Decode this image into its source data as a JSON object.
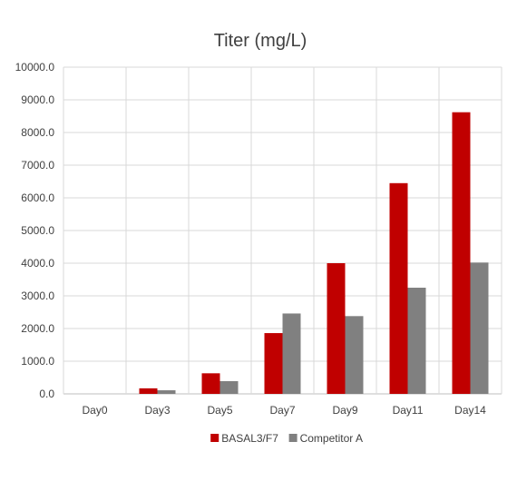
{
  "chart_data": {
    "type": "bar",
    "title": "Titer (mg/L)",
    "categories": [
      "Day0",
      "Day3",
      "Day5",
      "Day7",
      "Day9",
      "Day11",
      "Day14"
    ],
    "series": [
      {
        "name": "BASAL3/F7",
        "color": "#C00000",
        "values": [
          0,
          170,
          630,
          1860,
          4000,
          6450,
          8620
        ]
      },
      {
        "name": "Competitor A",
        "color": "#808080",
        "values": [
          0,
          110,
          390,
          2460,
          2380,
          3250,
          4020
        ]
      }
    ],
    "ylim": [
      0,
      10000
    ],
    "ytick_step": 1000,
    "ytick_labels": [
      "0.0",
      "1000.0",
      "2000.0",
      "3000.0",
      "4000.0",
      "5000.0",
      "6000.0",
      "7000.0",
      "8000.0",
      "9000.0",
      "10000.0"
    ],
    "xlabel": "",
    "ylabel": "",
    "grid": true,
    "legend": "bottom"
  }
}
